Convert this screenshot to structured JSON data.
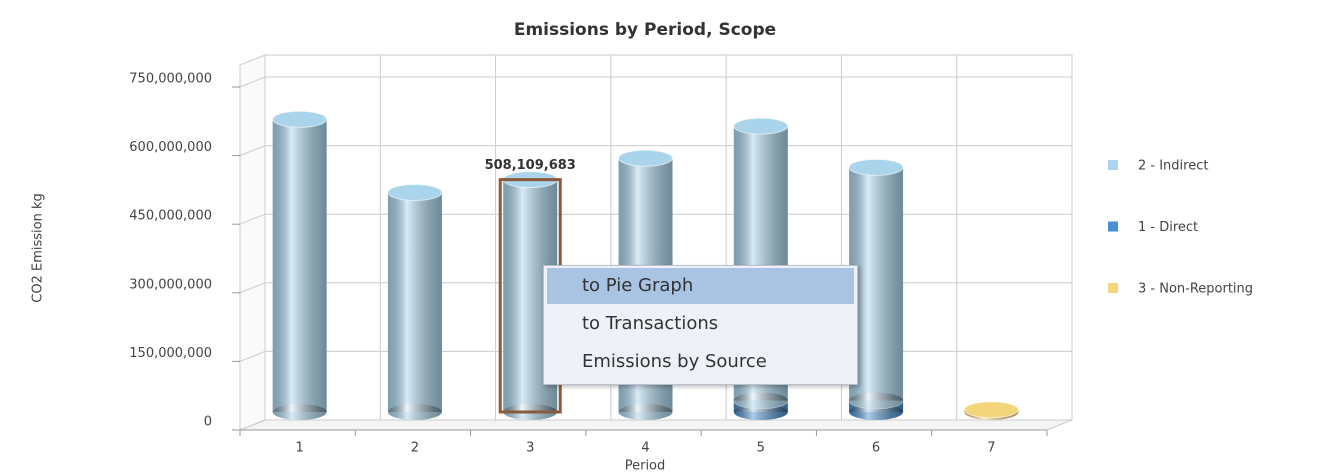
{
  "chart_data": {
    "type": "bar3d_stacked",
    "title": "Emissions by Period, Scope",
    "x_label": "Period",
    "y_label": "CO2 Emission kg",
    "categories": [
      "1",
      "2",
      "3",
      "4",
      "5",
      "6",
      "7"
    ],
    "series": [
      {
        "name": "2 - Indirect",
        "color": "#a9d4ec",
        "values": [
          640000000,
          480000000,
          508109683,
          555000000,
          600000000,
          510000000,
          0
        ],
        "value_labels": [
          null,
          null,
          "508,109,683",
          null,
          null,
          null,
          null
        ]
      },
      {
        "name": "1 - Direct",
        "color": "#4a8fcf",
        "values": [
          0,
          0,
          0,
          0,
          25000000,
          25000000,
          0
        ]
      },
      {
        "name": "3 - Non-Reporting",
        "color": "#f3d57a",
        "values": [
          0,
          0,
          0,
          0,
          0,
          0,
          5000000
        ]
      }
    ],
    "ylim": [
      0,
      750000000
    ],
    "yticks": [
      0,
      {
        "value": 150000000,
        "label": "150,000,000"
      },
      {
        "value": 300000000,
        "label": "300,000,000"
      },
      {
        "value": 450000000,
        "label": "450,000,000"
      },
      {
        "value": 600000000,
        "label": "600,000,000"
      },
      {
        "value": 750000000,
        "label": "750,000,000"
      }
    ],
    "grid": true,
    "legend": "right"
  },
  "context_menu": {
    "items": [
      "to Pie Graph",
      "to Transactions",
      "Emissions by Source"
    ]
  }
}
